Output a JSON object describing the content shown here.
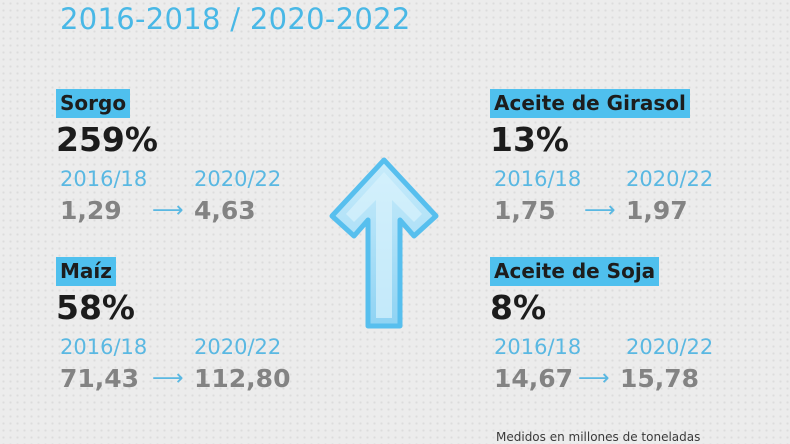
{
  "header": "2016-2018 / 2020-2022",
  "items": [
    {
      "name": "Sorgo",
      "pct": "259%",
      "year_a": "2016/18",
      "year_b": "2020/22",
      "val_a": "1,29",
      "val_b": "4,63"
    },
    {
      "name": "Maíz",
      "pct": "58%",
      "year_a": "2016/18",
      "year_b": "2020/22",
      "val_a": "71,43",
      "val_b": "112,80"
    },
    {
      "name": "Aceite de Girasol",
      "pct": "13%",
      "year_a": "2016/18",
      "year_b": "2020/22",
      "val_a": "1,75",
      "val_b": "1,97"
    },
    {
      "name": "Aceite de Soja",
      "pct": "8%",
      "year_a": "2016/18",
      "year_b": "2020/22",
      "val_a": "14,67",
      "val_b": "15,78"
    }
  ],
  "arrow_glyph": "⟶",
  "footnote": "Medidos en millones de toneladas",
  "colors": {
    "accent": "#4fc0ee",
    "label_blue": "#5ab8e2",
    "value_gray": "#838383",
    "dark": "#1c1c1c"
  },
  "icons": {
    "center": "up-arrow-icon",
    "between_values": "right-arrow-icon"
  }
}
